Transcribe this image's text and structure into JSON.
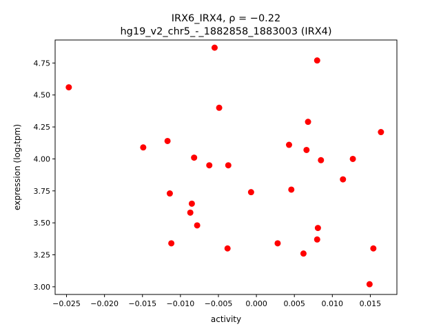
{
  "chart_data": {
    "type": "scatter",
    "title": "IRX6_IRX4, ρ = −0.22",
    "subtitle": "hg19_v2_chr5_-_1882858_1883003 (IRX4)",
    "xlabel": "activity",
    "ylabel": "expression (log₂tpm)",
    "xlim": [
      -0.0265,
      0.0185
    ],
    "ylim": [
      2.94,
      4.93
    ],
    "xticks": [
      -0.025,
      -0.02,
      -0.015,
      -0.01,
      -0.005,
      0.0,
      0.005,
      0.01,
      0.015
    ],
    "xtick_labels": [
      "−0.025",
      "−0.020",
      "−0.015",
      "−0.010",
      "−0.005",
      "0.000",
      "0.005",
      "0.010",
      "0.015"
    ],
    "yticks": [
      3.0,
      3.25,
      3.5,
      3.75,
      4.0,
      4.25,
      4.5,
      4.75
    ],
    "ytick_labels": [
      "3.00",
      "3.25",
      "3.50",
      "3.75",
      "4.00",
      "4.25",
      "4.50",
      "4.75"
    ],
    "grid": false,
    "marker_color": "#ff0000",
    "points": [
      {
        "x": -0.0247,
        "y": 4.56
      },
      {
        "x": -0.0149,
        "y": 4.09
      },
      {
        "x": -0.0117,
        "y": 4.14
      },
      {
        "x": -0.0114,
        "y": 3.73
      },
      {
        "x": -0.0112,
        "y": 3.34
      },
      {
        "x": -0.0087,
        "y": 3.58
      },
      {
        "x": -0.0085,
        "y": 3.65
      },
      {
        "x": -0.0082,
        "y": 4.01
      },
      {
        "x": -0.0078,
        "y": 3.48
      },
      {
        "x": -0.0062,
        "y": 3.95
      },
      {
        "x": -0.0055,
        "y": 4.87
      },
      {
        "x": -0.0049,
        "y": 4.4
      },
      {
        "x": -0.0037,
        "y": 3.95
      },
      {
        "x": -0.0038,
        "y": 3.3
      },
      {
        "x": -0.0007,
        "y": 3.74
      },
      {
        "x": 0.0028,
        "y": 3.34
      },
      {
        "x": 0.0043,
        "y": 4.11
      },
      {
        "x": 0.0046,
        "y": 3.76
      },
      {
        "x": 0.0062,
        "y": 3.26
      },
      {
        "x": 0.0066,
        "y": 4.07
      },
      {
        "x": 0.0068,
        "y": 4.29
      },
      {
        "x": 0.008,
        "y": 4.77
      },
      {
        "x": 0.008,
        "y": 3.37
      },
      {
        "x": 0.0081,
        "y": 3.46
      },
      {
        "x": 0.0085,
        "y": 3.99
      },
      {
        "x": 0.0114,
        "y": 3.84
      },
      {
        "x": 0.0127,
        "y": 4.0
      },
      {
        "x": 0.0149,
        "y": 3.02
      },
      {
        "x": 0.0154,
        "y": 3.3
      },
      {
        "x": 0.0164,
        "y": 4.21
      }
    ]
  }
}
